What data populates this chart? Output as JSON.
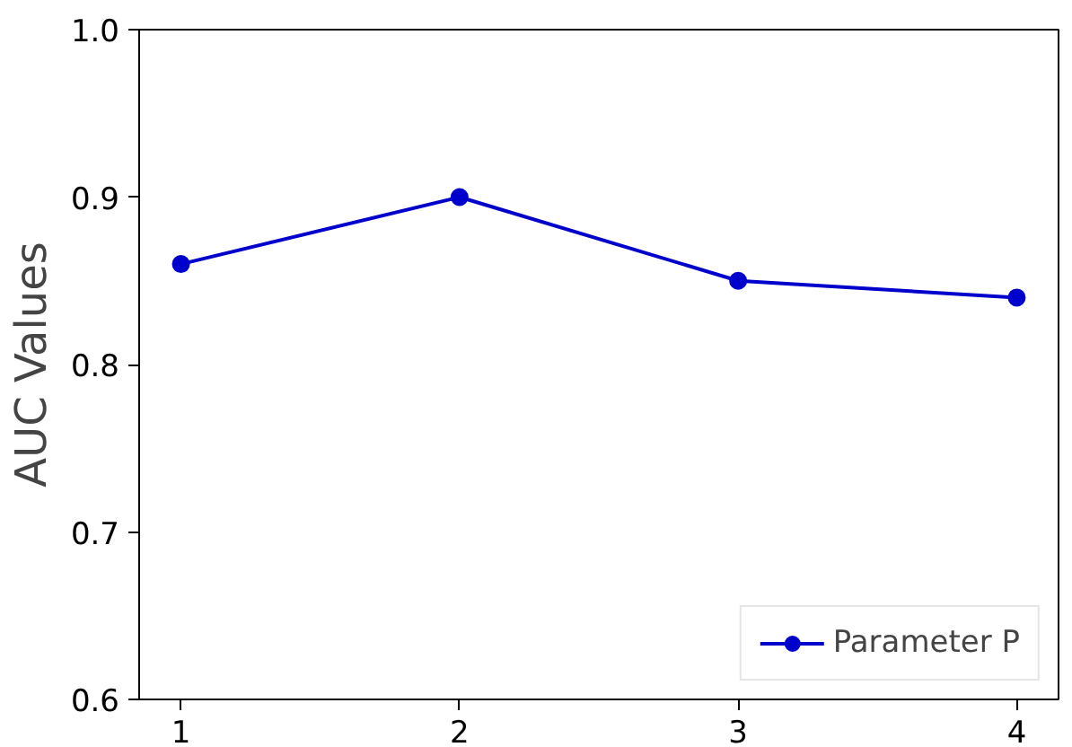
{
  "chart_data": {
    "type": "line",
    "ylabel": "AUC Values",
    "x": [
      1,
      2,
      3,
      4
    ],
    "series": [
      {
        "name": "Parameter P",
        "color": "#0000cc",
        "values": [
          0.86,
          0.9,
          0.85,
          0.84
        ]
      }
    ],
    "xlim": [
      0.85,
      4.15
    ],
    "xticks": [
      1,
      2,
      3,
      4
    ],
    "ylim": [
      0.6,
      1.0
    ],
    "yticks": [
      0.6,
      0.7,
      0.8,
      0.9,
      {
        "value": 1.0,
        "label": "1.0"
      }
    ],
    "grid": false,
    "legend": "bottom right",
    "marker": "circle",
    "line_style": "solid"
  }
}
